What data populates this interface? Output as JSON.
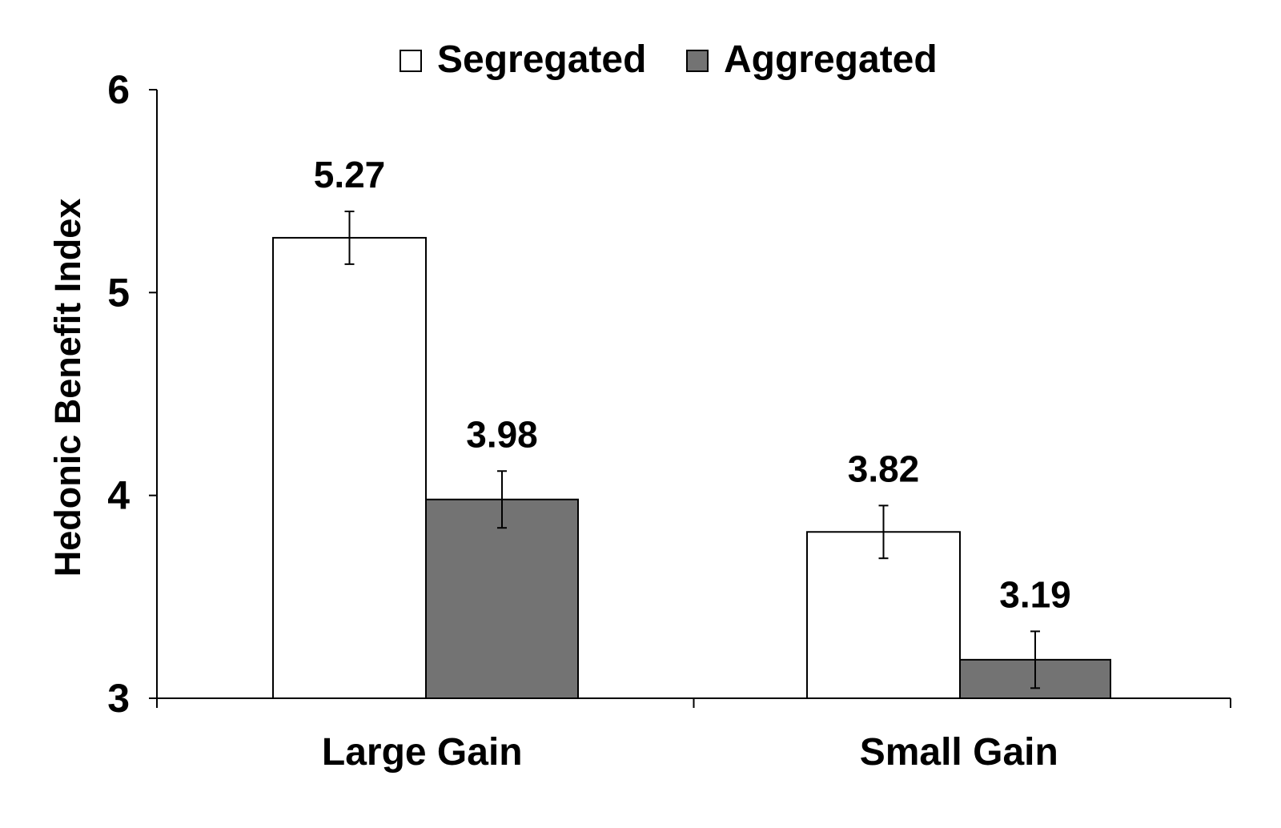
{
  "chart_data": {
    "type": "bar",
    "categories": [
      "Large Gain",
      "Small Gain"
    ],
    "series": [
      {
        "name": "Segregated",
        "values": [
          5.27,
          3.82
        ],
        "error": [
          0.13,
          0.13
        ],
        "color": "#ffffff"
      },
      {
        "name": "Aggregated",
        "values": [
          3.98,
          3.19
        ],
        "error": [
          0.14,
          0.14
        ],
        "color": "#737373"
      }
    ],
    "data_labels": [
      [
        "5.27",
        "3.82"
      ],
      [
        "3.98",
        "3.19"
      ]
    ],
    "title": "",
    "xlabel": "",
    "ylabel": "Hedonic Benefit Index",
    "ylim": [
      3,
      6
    ],
    "yticks": [
      3,
      4,
      5,
      6
    ],
    "grid": false,
    "legend_position": "top-center"
  }
}
